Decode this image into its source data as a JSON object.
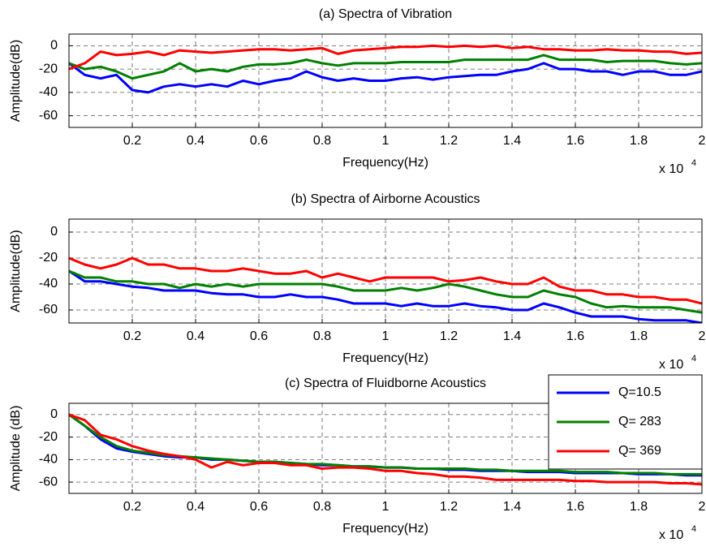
{
  "chart_data": [
    {
      "type": "line",
      "title": "(a) Spectra of Vibration",
      "x_label": "Frequency(Hz)",
      "y_label": "Amplitude(dB)",
      "x_scale_base": "x 10",
      "x_scale_exponent": "4",
      "xlim": [
        0,
        20000
      ],
      "ylim": [
        -70,
        10
      ],
      "grid": true,
      "xticks": [
        {
          "value": 2000,
          "label": "0.2"
        },
        {
          "value": 4000,
          "label": "0.4"
        },
        {
          "value": 6000,
          "label": "0.6"
        },
        {
          "value": 8000,
          "label": "0.8"
        },
        {
          "value": 10000,
          "label": "1"
        },
        {
          "value": 12000,
          "label": "1.2"
        },
        {
          "value": 14000,
          "label": "1.4"
        },
        {
          "value": 16000,
          "label": "1.6"
        },
        {
          "value": 18000,
          "label": "1.8"
        },
        {
          "value": 20000,
          "label": "2"
        }
      ],
      "yticks": [
        -60,
        -40,
        -20,
        0
      ],
      "x": [
        0,
        500,
        1000,
        1500,
        2000,
        2500,
        3000,
        3500,
        4000,
        4500,
        5000,
        5500,
        6000,
        6500,
        7000,
        7500,
        8000,
        8500,
        9000,
        9500,
        10000,
        10500,
        11000,
        11500,
        12000,
        12500,
        13000,
        13500,
        14000,
        14500,
        15000,
        15500,
        16000,
        16500,
        17000,
        17500,
        18000,
        18500,
        19000,
        19500,
        20000
      ],
      "series": [
        {
          "color": "#0000ff",
          "values": [
            -15,
            -25,
            -28,
            -25,
            -38,
            -40,
            -35,
            -33,
            -35,
            -33,
            -35,
            -30,
            -33,
            -30,
            -28,
            -22,
            -27,
            -30,
            -28,
            -30,
            -30,
            -28,
            -27,
            -29,
            -27,
            -26,
            -25,
            -25,
            -22,
            -20,
            -15,
            -20,
            -20,
            -22,
            -22,
            -25,
            -22,
            -22,
            -25,
            -25,
            -22
          ]
        },
        {
          "color": "#008000",
          "values": [
            -15,
            -20,
            -18,
            -22,
            -28,
            -25,
            -22,
            -15,
            -22,
            -20,
            -22,
            -18,
            -16,
            -16,
            -15,
            -12,
            -15,
            -17,
            -15,
            -15,
            -15,
            -14,
            -14,
            -14,
            -14,
            -12,
            -12,
            -12,
            -12,
            -12,
            -8,
            -12,
            -12,
            -12,
            -14,
            -13,
            -13,
            -13,
            -15,
            -16,
            -15
          ]
        },
        {
          "color": "#ff0000",
          "values": [
            -20,
            -15,
            -5,
            -8,
            -7,
            -5,
            -8,
            -4,
            -5,
            -6,
            -5,
            -4,
            -3,
            -3,
            -4,
            -3,
            -2,
            -7,
            -4,
            -3,
            -2,
            -1,
            -1,
            0,
            -1,
            0,
            -1,
            0,
            -2,
            -1,
            -3,
            -3,
            -4,
            -4,
            -3,
            -4,
            -4,
            -5,
            -5,
            -7,
            -6
          ]
        }
      ]
    },
    {
      "type": "line",
      "title": "(b) Spectra of Airborne Acoustics",
      "x_label": "Frequency(Hz)",
      "y_label": "Amplitude(dB)",
      "x_scale_base": "x 10",
      "x_scale_exponent": "4",
      "xlim": [
        0,
        20000
      ],
      "ylim": [
        -70,
        10
      ],
      "grid": true,
      "xticks": [
        {
          "value": 2000,
          "label": "0.2"
        },
        {
          "value": 4000,
          "label": "0.4"
        },
        {
          "value": 6000,
          "label": "0.6"
        },
        {
          "value": 8000,
          "label": "0.8"
        },
        {
          "value": 10000,
          "label": "1"
        },
        {
          "value": 12000,
          "label": "1.2"
        },
        {
          "value": 14000,
          "label": "1.4"
        },
        {
          "value": 16000,
          "label": "1.6"
        },
        {
          "value": 18000,
          "label": "1.8"
        },
        {
          "value": 20000,
          "label": "2"
        }
      ],
      "yticks": [
        -60,
        -40,
        -20,
        0
      ],
      "x": [
        0,
        500,
        1000,
        1500,
        2000,
        2500,
        3000,
        3500,
        4000,
        4500,
        5000,
        5500,
        6000,
        6500,
        7000,
        7500,
        8000,
        8500,
        9000,
        9500,
        10000,
        10500,
        11000,
        11500,
        12000,
        12500,
        13000,
        13500,
        14000,
        14500,
        15000,
        15500,
        16000,
        16500,
        17000,
        17500,
        18000,
        18500,
        19000,
        19500,
        20000
      ],
      "series": [
        {
          "color": "#0000ff",
          "values": [
            -30,
            -38,
            -38,
            -40,
            -42,
            -43,
            -45,
            -45,
            -45,
            -47,
            -48,
            -48,
            -50,
            -50,
            -48,
            -50,
            -50,
            -52,
            -55,
            -55,
            -55,
            -57,
            -55,
            -57,
            -57,
            -55,
            -57,
            -58,
            -60,
            -60,
            -55,
            -58,
            -62,
            -65,
            -65,
            -65,
            -67,
            -68,
            -68,
            -68,
            -70
          ]
        },
        {
          "color": "#008000",
          "values": [
            -30,
            -35,
            -35,
            -38,
            -38,
            -40,
            -40,
            -43,
            -40,
            -42,
            -40,
            -42,
            -40,
            -40,
            -40,
            -40,
            -40,
            -42,
            -45,
            -45,
            -45,
            -43,
            -45,
            -43,
            -40,
            -42,
            -45,
            -48,
            -50,
            -50,
            -45,
            -48,
            -50,
            -55,
            -58,
            -57,
            -58,
            -58,
            -58,
            -60,
            -62
          ]
        },
        {
          "color": "#ff0000",
          "values": [
            -20,
            -25,
            -28,
            -25,
            -20,
            -25,
            -25,
            -28,
            -28,
            -30,
            -30,
            -28,
            -30,
            -32,
            -32,
            -30,
            -35,
            -32,
            -35,
            -38,
            -35,
            -35,
            -35,
            -35,
            -38,
            -37,
            -35,
            -38,
            -40,
            -40,
            -35,
            -42,
            -45,
            -45,
            -48,
            -48,
            -50,
            -50,
            -52,
            -52,
            -55
          ]
        }
      ]
    },
    {
      "type": "line",
      "title": "(c) Spectra of Fluidborne Acoustics",
      "x_label": "Frequency(Hz)",
      "y_label": "Amplitude (dB)",
      "x_scale_base": "x 10",
      "x_scale_exponent": "4",
      "xlim": [
        0,
        20000
      ],
      "ylim": [
        -70,
        10
      ],
      "grid": true,
      "legend": "upper right",
      "xticks": [
        {
          "value": 2000,
          "label": "0.2"
        },
        {
          "value": 4000,
          "label": "0.4"
        },
        {
          "value": 6000,
          "label": "0.6"
        },
        {
          "value": 8000,
          "label": "0.8"
        },
        {
          "value": 10000,
          "label": "1"
        },
        {
          "value": 12000,
          "label": "1.2"
        },
        {
          "value": 14000,
          "label": "1.4"
        },
        {
          "value": 16000,
          "label": "1.6"
        },
        {
          "value": 18000,
          "label": "1.8"
        },
        {
          "value": 20000,
          "label": "2"
        }
      ],
      "yticks": [
        -60,
        -40,
        -20,
        0
      ],
      "x": [
        0,
        500,
        1000,
        1500,
        2000,
        2500,
        3000,
        3500,
        4000,
        4500,
        5000,
        5500,
        6000,
        6500,
        7000,
        7500,
        8000,
        8500,
        9000,
        9500,
        10000,
        10500,
        11000,
        11500,
        12000,
        12500,
        13000,
        13500,
        14000,
        14500,
        15000,
        15500,
        16000,
        16500,
        17000,
        17500,
        18000,
        18500,
        19000,
        19500,
        20000
      ],
      "series": [
        {
          "name": "Q=10.5",
          "color": "#0000ff",
          "values": [
            0,
            -10,
            -22,
            -30,
            -33,
            -35,
            -37,
            -38,
            -38,
            -40,
            -40,
            -41,
            -42,
            -42,
            -43,
            -44,
            -45,
            -45,
            -46,
            -46,
            -47,
            -47,
            -48,
            -48,
            -49,
            -49,
            -50,
            -50,
            -50,
            -51,
            -51,
            -51,
            -52,
            -52,
            -52,
            -52,
            -53,
            -53,
            -53,
            -54,
            -54
          ]
        },
        {
          "name": "Q= 283",
          "color": "#008000",
          "values": [
            0,
            -10,
            -20,
            -28,
            -32,
            -34,
            -36,
            -37,
            -38,
            -39,
            -40,
            -41,
            -42,
            -42,
            -43,
            -44,
            -44,
            -45,
            -46,
            -46,
            -47,
            -47,
            -48,
            -48,
            -48,
            -48,
            -49,
            -49,
            -50,
            -50,
            -50,
            -50,
            -51,
            -51,
            -51,
            -52,
            -52,
            -52,
            -53,
            -53,
            -53
          ]
        },
        {
          "name": "Q= 369",
          "color": "#ff0000",
          "values": [
            0,
            -5,
            -18,
            -22,
            -28,
            -32,
            -35,
            -37,
            -40,
            -47,
            -42,
            -45,
            -43,
            -43,
            -45,
            -45,
            -48,
            -47,
            -47,
            -48,
            -50,
            -50,
            -52,
            -53,
            -55,
            -55,
            -56,
            -58,
            -58,
            -58,
            -58,
            -58,
            -59,
            -59,
            -60,
            -60,
            -60,
            -60,
            -61,
            -61,
            -62
          ]
        }
      ]
    }
  ]
}
